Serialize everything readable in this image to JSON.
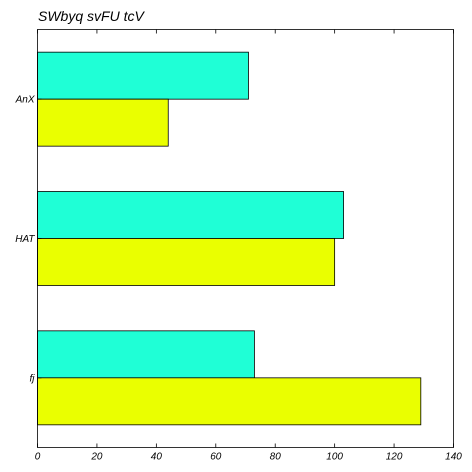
{
  "chart_data": {
    "type": "bar",
    "orientation": "horizontal",
    "title": "SWbyq svFU tcV",
    "xlabel": "",
    "ylabel": "",
    "categories": [
      "AnX",
      "HAT",
      "fj"
    ],
    "series": [
      {
        "color": "#1fffd6",
        "values": [
          71,
          103,
          73
        ]
      },
      {
        "color": "#eaff00",
        "values": [
          44,
          100,
          129
        ]
      }
    ],
    "xlim": [
      0,
      140
    ],
    "xticks": [
      "0",
      "20",
      "40",
      "60",
      "80",
      "100",
      "120",
      "140"
    ],
    "grid": false
  }
}
